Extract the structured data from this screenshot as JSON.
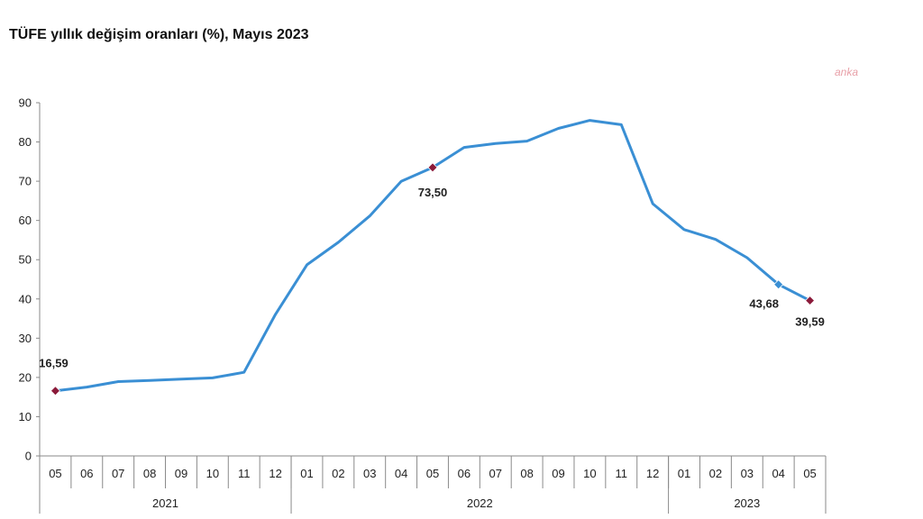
{
  "title": "TÜFE yıllık değişim oranları (%), Mayıs 2023",
  "watermark": "anka",
  "chart_data": {
    "type": "line",
    "title": "TÜFE yıllık değişim oranları (%), Mayıs 2023",
    "xlabel": "",
    "ylabel": "",
    "ylim": [
      0,
      90
    ],
    "yticks": [
      0,
      10,
      20,
      30,
      40,
      50,
      60,
      70,
      80,
      90
    ],
    "categories": [
      "05",
      "06",
      "07",
      "08",
      "09",
      "10",
      "11",
      "12",
      "01",
      "02",
      "03",
      "04",
      "05",
      "06",
      "07",
      "08",
      "09",
      "10",
      "11",
      "12",
      "01",
      "02",
      "03",
      "04",
      "05"
    ],
    "year_groups": [
      {
        "label": "2021",
        "start": 0,
        "end": 7
      },
      {
        "label": "2022",
        "start": 8,
        "end": 19
      },
      {
        "label": "2023",
        "start": 20,
        "end": 24
      }
    ],
    "grid": false,
    "legend": "none",
    "series": [
      {
        "color": "#3a8fd4",
        "values": [
          16.59,
          17.53,
          18.95,
          19.25,
          19.58,
          19.89,
          21.31,
          36.08,
          48.69,
          54.44,
          61.14,
          69.97,
          73.5,
          78.62,
          79.6,
          80.21,
          83.45,
          85.51,
          84.39,
          64.27,
          57.68,
          55.18,
          50.51,
          43.68,
          39.59
        ]
      }
    ],
    "annotations": [
      {
        "index": 0,
        "label": "16,59",
        "marker_color": "#8b1a3a"
      },
      {
        "index": 12,
        "label": "73,50",
        "marker_color": "#8b1a3a"
      },
      {
        "index": 23,
        "label": "43,68",
        "marker_color": "#3a8fd4"
      },
      {
        "index": 24,
        "label": "39,59",
        "marker_color": "#8b1a3a"
      }
    ]
  }
}
